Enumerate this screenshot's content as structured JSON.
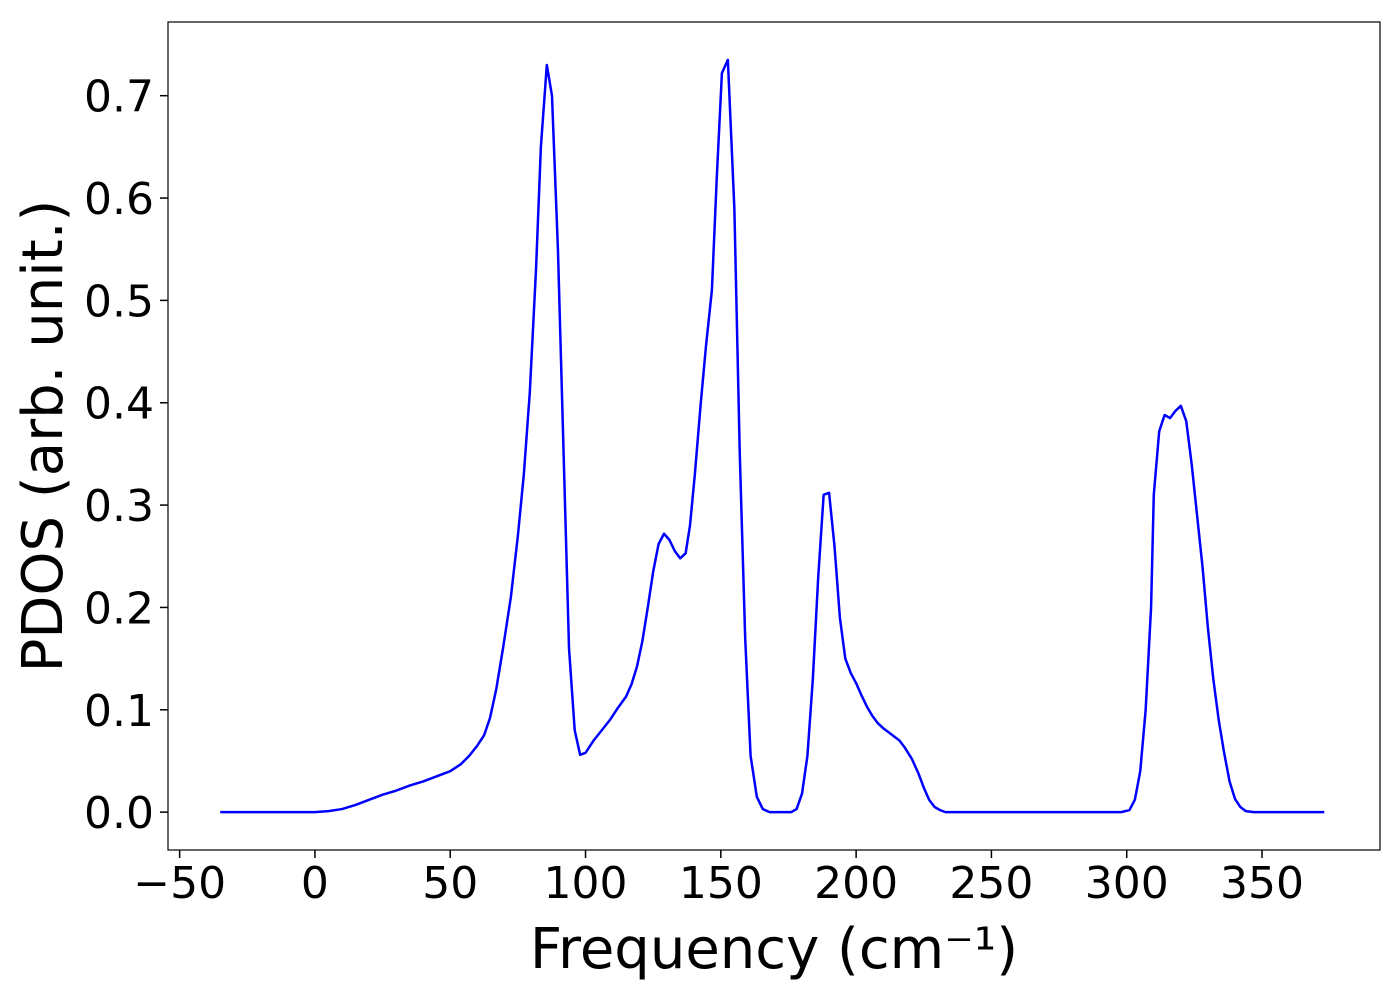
{
  "chart_data": {
    "type": "line",
    "xlabel": "Frequency (cm⁻¹)",
    "ylabel": "PDOS (arb. unit.)",
    "xlim": [
      -54.3,
      393.6
    ],
    "ylim": [
      -0.037,
      0.772
    ],
    "xticks": [
      {
        "value": -50,
        "label": "−50"
      },
      0,
      50,
      100,
      150,
      200,
      250,
      300,
      350
    ],
    "yticks": [
      {
        "value": 0,
        "label": "0.0"
      },
      0.1,
      0.2,
      0.3,
      0.4,
      0.5,
      0.6,
      0.7
    ],
    "grid": false,
    "x": [
      -35,
      0,
      5,
      10,
      15,
      20,
      25,
      30,
      35,
      40,
      45,
      50,
      54,
      57,
      60,
      62.5,
      64.7,
      67,
      69.5,
      72.4,
      75,
      77.2,
      79.4,
      81.7,
      83.5,
      85.7,
      87.6,
      89.8,
      93.9,
      96,
      98,
      100,
      103,
      106,
      109,
      112,
      115,
      117,
      119,
      121,
      123,
      125,
      127,
      129,
      131,
      133,
      135,
      137,
      138.6,
      140.4,
      142.6,
      144.5,
      146.7,
      148.5,
      150.4,
      152.6,
      155,
      157,
      159,
      161,
      163.3,
      165.5,
      168,
      176,
      178,
      180,
      182,
      184,
      186,
      188,
      190,
      192,
      194,
      196,
      198,
      200,
      202,
      204,
      206,
      208,
      210,
      212,
      214,
      216,
      218,
      220.6,
      223,
      225,
      227,
      229,
      231,
      233,
      236,
      298,
      301,
      303,
      305,
      307,
      309,
      310,
      312,
      314,
      316,
      318,
      320,
      322,
      324,
      326,
      328,
      330,
      332,
      334,
      336,
      338,
      340,
      342,
      344,
      347,
      373
    ],
    "series": [
      {
        "name": "PDOS",
        "color": "#0000ff",
        "values": [
          0,
          0,
          0.001,
          0.003,
          0.007,
          0.012,
          0.017,
          0.021,
          0.026,
          0.03,
          0.035,
          0.04,
          0.047,
          0.055,
          0.065,
          0.075,
          0.092,
          0.12,
          0.16,
          0.21,
          0.27,
          0.33,
          0.41,
          0.53,
          0.65,
          0.73,
          0.7,
          0.55,
          0.16,
          0.08,
          0.056,
          0.058,
          0.07,
          0.08,
          0.09,
          0.102,
          0.113,
          0.125,
          0.142,
          0.167,
          0.2,
          0.235,
          0.262,
          0.272,
          0.266,
          0.255,
          0.248,
          0.253,
          0.28,
          0.33,
          0.4,
          0.455,
          0.51,
          0.62,
          0.722,
          0.735,
          0.59,
          0.35,
          0.17,
          0.055,
          0.015,
          0.003,
          0,
          0,
          0.003,
          0.018,
          0.055,
          0.13,
          0.23,
          0.31,
          0.312,
          0.26,
          0.19,
          0.15,
          0.136,
          0.126,
          0.114,
          0.103,
          0.094,
          0.087,
          0.082,
          0.078,
          0.074,
          0.07,
          0.063,
          0.052,
          0.038,
          0.024,
          0.012,
          0.005,
          0.002,
          0,
          0,
          0,
          0.002,
          0.012,
          0.04,
          0.1,
          0.2,
          0.31,
          0.372,
          0.388,
          0.385,
          0.392,
          0.397,
          0.382,
          0.34,
          0.29,
          0.24,
          0.18,
          0.13,
          0.09,
          0.058,
          0.03,
          0.013,
          0.005,
          0.001,
          0,
          0
        ]
      }
    ]
  }
}
